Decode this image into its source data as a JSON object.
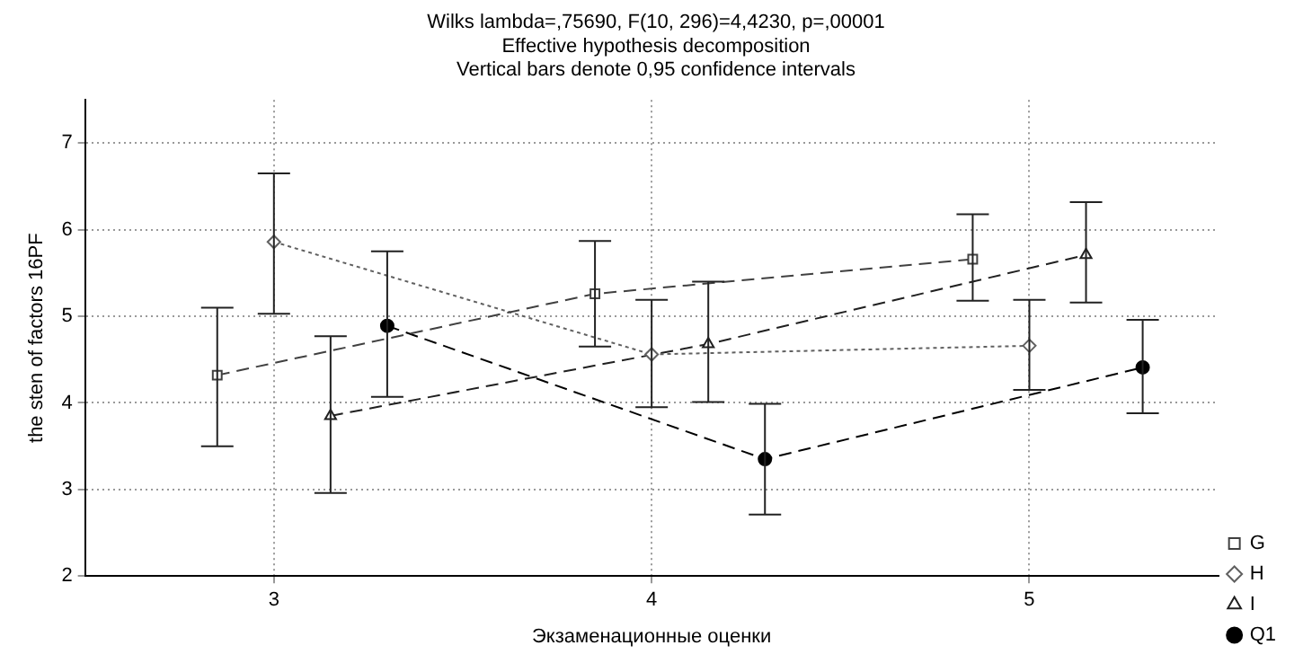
{
  "chart_data": {
    "type": "line",
    "title": [
      "Wilks lambda=,75690, F(10, 296)=4,4230, p=,00001",
      "Effective hypothesis decomposition",
      "Vertical bars denote 0,95 confidence intervals"
    ],
    "xlabel": "Экзаменационные оценки",
    "ylabel": "the sten of factors 16PF",
    "xlim": [
      2.5,
      5.5
    ],
    "xticks": [
      3,
      4,
      5
    ],
    "ylim": [
      2,
      7.5
    ],
    "yticks": [
      2,
      3,
      4,
      5,
      6,
      7
    ],
    "grid": true,
    "legend": "bottom right",
    "series": [
      {
        "name": "G",
        "color": "#404040",
        "marker": "square",
        "line_style": "dashed",
        "x": [
          2.85,
          3.85,
          4.85
        ],
        "values": [
          4.32,
          5.26,
          5.66
        ],
        "errors": [
          [
            3.5,
            5.1
          ],
          [
            4.65,
            5.87
          ],
          [
            5.18,
            6.18
          ]
        ]
      },
      {
        "name": "H",
        "color": "#606060",
        "marker": "diamond",
        "line_style": "dotted",
        "x": [
          3,
          4,
          5
        ],
        "values": [
          5.86,
          4.56,
          4.66
        ],
        "errors": [
          [
            5.03,
            6.65
          ],
          [
            3.95,
            5.19
          ],
          [
            4.15,
            5.19
          ]
        ]
      },
      {
        "name": "I",
        "color": "#202020",
        "marker": "triangle",
        "line_style": "dashed",
        "x": [
          3.15,
          4.15,
          5.15
        ],
        "values": [
          3.85,
          4.68,
          5.71
        ],
        "errors": [
          [
            2.96,
            4.77
          ],
          [
            4.01,
            5.4
          ],
          [
            5.16,
            6.32
          ]
        ]
      },
      {
        "name": "Q1",
        "color": "#000000",
        "marker": "circle",
        "line_style": "dashed",
        "x": [
          3.3,
          4.3,
          5.3
        ],
        "values": [
          4.89,
          3.35,
          4.41
        ],
        "errors": [
          [
            4.07,
            5.75
          ],
          [
            2.71,
            3.99
          ],
          [
            3.88,
            4.96
          ]
        ]
      }
    ]
  }
}
